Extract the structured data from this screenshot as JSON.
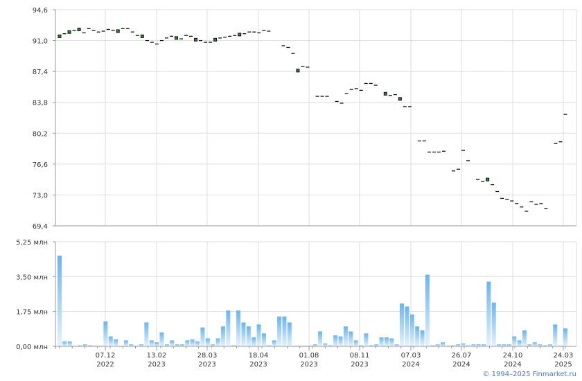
{
  "credit": "© 1994–2025 Finmarket.ru",
  "colors": {
    "grid": "#dddddd",
    "axis": "#999999",
    "price_mark": "#111111",
    "highlight_fill": "#2e8b2e",
    "volume_top": "#6ab4ee",
    "volume_bottom": "#e6f2fc"
  },
  "chart_data": [
    {
      "type": "line",
      "title": "",
      "ylim": [
        69.4,
        94.6
      ],
      "y_ticks": [
        "94,6",
        "91,0",
        "87,4",
        "83,8",
        "80,2",
        "76,6",
        "73,0",
        "69,4"
      ],
      "y_tick_values": [
        94.6,
        91.0,
        87.4,
        83.8,
        80.2,
        76.6,
        73.0,
        69.4
      ],
      "x_ticks": [
        {
          "line1": "07.12",
          "line2": "2022"
        },
        {
          "line1": "13.02",
          "line2": "2023"
        },
        {
          "line1": "28.03",
          "line2": "2023"
        },
        {
          "line1": "18.04",
          "line2": "2023"
        },
        {
          "line1": "01.08",
          "line2": "2023"
        },
        {
          "line1": "08.11",
          "line2": "2023"
        },
        {
          "line1": "07.03",
          "line2": "2024"
        },
        {
          "line1": "26.07",
          "line2": "2024"
        },
        {
          "line1": "24.10",
          "line2": "2024"
        },
        {
          "line1": "24.03",
          "line2": "2025"
        }
      ],
      "grid": true,
      "values": [
        91.5,
        91.8,
        92.0,
        92.2,
        92.3,
        91.9,
        92.4,
        92.2,
        92.0,
        92.1,
        92.3,
        92.2,
        92.1,
        92.4,
        92.4,
        92.0,
        91.6,
        91.5,
        91.0,
        90.8,
        90.6,
        91.0,
        91.3,
        91.5,
        91.3,
        91.2,
        91.6,
        91.5,
        91.1,
        91.0,
        90.8,
        90.8,
        91.1,
        91.3,
        91.4,
        91.5,
        91.6,
        91.7,
        91.8,
        92.0,
        92.0,
        91.9,
        92.2,
        92.1,
        null,
        null,
        90.4,
        90.2,
        89.5,
        87.5,
        88.0,
        87.9,
        null,
        84.5,
        84.5,
        84.5,
        null,
        83.9,
        83.7,
        84.8,
        85.3,
        85.4,
        85.2,
        86.0,
        86.0,
        85.8,
        null,
        84.8,
        84.6,
        84.7,
        84.2,
        83.3,
        83.3,
        null,
        79.3,
        79.3,
        78.0,
        78.0,
        78.0,
        78.1,
        null,
        75.8,
        76.0,
        78.2,
        77.0,
        null,
        74.8,
        74.6,
        74.8,
        74.2,
        73.4,
        72.6,
        72.5,
        72.3,
        72.0,
        71.6,
        71.1,
        72.2,
        71.9,
        72.0,
        71.4,
        null,
        79.0,
        79.2,
        82.4
      ],
      "highlighted": [
        0,
        2,
        4,
        12,
        17,
        24,
        28,
        32,
        37,
        49,
        67,
        70,
        88
      ]
    },
    {
      "type": "bar",
      "title": "",
      "ylim": [
        0,
        5.25
      ],
      "unit": "млн",
      "y_ticks": [
        "5,25 млн",
        "3,50 млн",
        "1,75 млн",
        "0,00 млн"
      ],
      "y_tick_values": [
        5.25,
        3.5,
        1.75,
        0
      ],
      "values": [
        4.55,
        0.25,
        0.25,
        0.02,
        0.05,
        0.1,
        0.05,
        0.03,
        0.03,
        1.25,
        0.5,
        0.35,
        0.03,
        0.3,
        0.1,
        0.03,
        0.1,
        1.2,
        0.3,
        0.2,
        0.7,
        0.1,
        0.3,
        0.1,
        0.1,
        0.3,
        0.35,
        0.25,
        0.95,
        0.4,
        0.1,
        0.4,
        1.0,
        1.8,
        0.05,
        1.8,
        1.2,
        1.0,
        0.45,
        1.1,
        0.65,
        0.05,
        0.3,
        1.5,
        1.5,
        1.2,
        0.03,
        0.03,
        0.03,
        0.03,
        0.1,
        0.75,
        0.15,
        0.05,
        0.55,
        0.5,
        1.0,
        0.75,
        0.3,
        0.05,
        0.65,
        0.05,
        0.1,
        0.45,
        0.45,
        0.4,
        0.1,
        2.15,
        2.0,
        1.6,
        1.0,
        0.8,
        3.6,
        0.05,
        0.1,
        0.2,
        0.03,
        0.05,
        0.1,
        0.15,
        0.05,
        0.1,
        0.1,
        0.1,
        3.25,
        2.2,
        0.1,
        0.1,
        0.1,
        0.5,
        0.3,
        0.8,
        0.1,
        0.2,
        0.1,
        0.05,
        0.1,
        1.1,
        0.03,
        0.9
      ]
    }
  ]
}
